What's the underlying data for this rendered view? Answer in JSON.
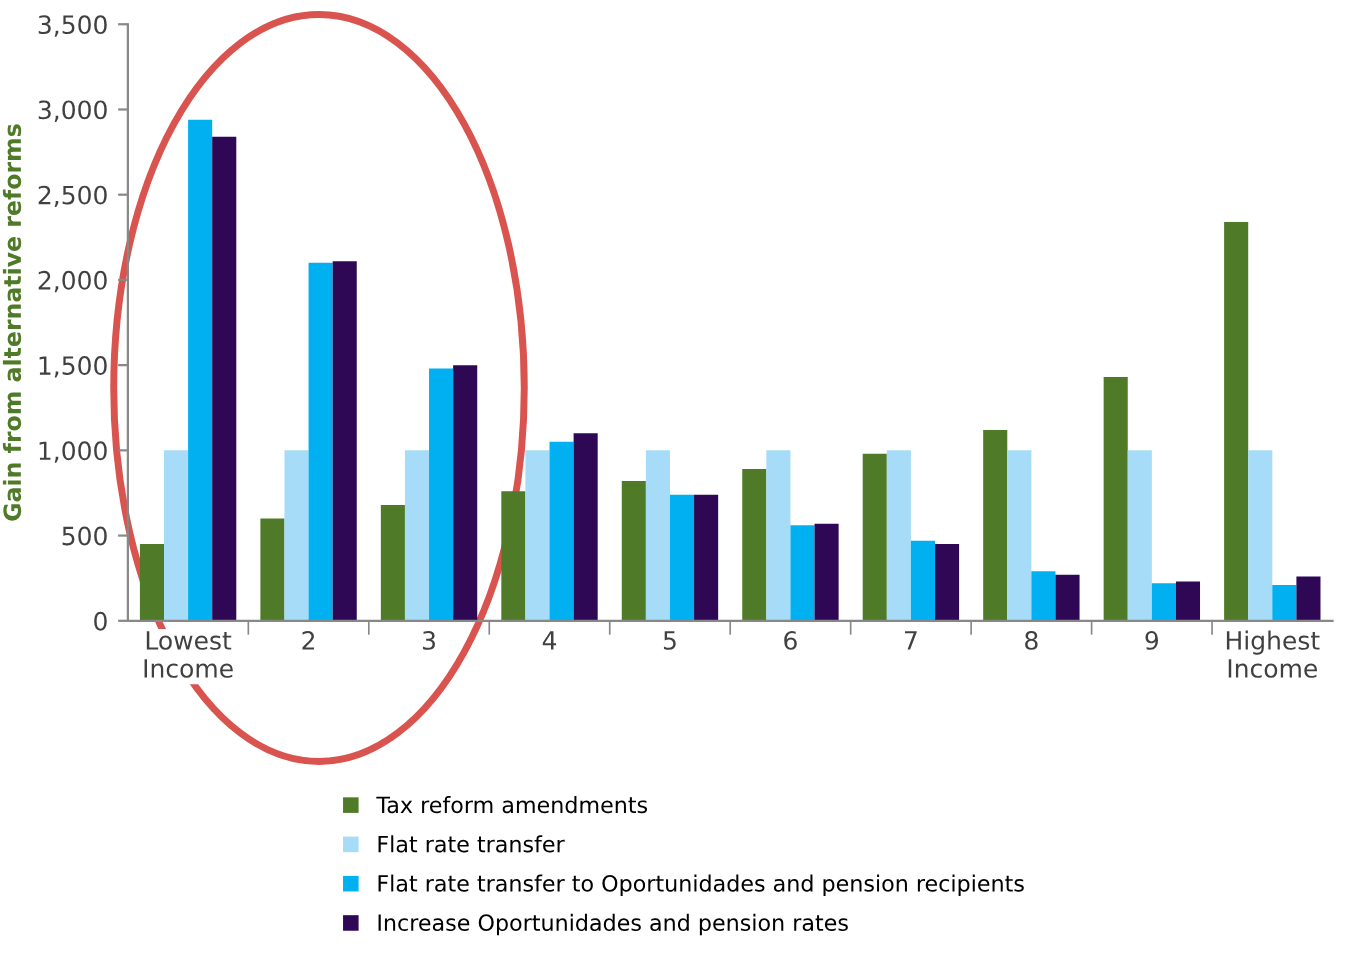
{
  "chart_data": {
    "type": "bar",
    "ylabel": "Gain from alternative reforms",
    "categories": [
      "Lowest\nIncome",
      "2",
      "3",
      "4",
      "5",
      "6",
      "7",
      "8",
      "9",
      "Highest\nIncome"
    ],
    "series": [
      {
        "name": "Tax reform amendments",
        "color": "#4f7a28",
        "values": [
          450,
          600,
          680,
          760,
          820,
          890,
          980,
          1120,
          1430,
          2340
        ]
      },
      {
        "name": "Flat rate transfer",
        "color": "#a6dcf7",
        "values": [
          1000,
          1000,
          1000,
          1000,
          1000,
          1000,
          1000,
          1000,
          1000,
          1000
        ]
      },
      {
        "name": "Flat rate transfer to Oportunidades and pension recipients",
        "color": "#00b0f0",
        "values": [
          2940,
          2100,
          1480,
          1050,
          740,
          560,
          470,
          290,
          220,
          210
        ]
      },
      {
        "name": "Increase Oportunidades and pension rates",
        "color": "#2e0854",
        "values": [
          2840,
          2110,
          1500,
          1100,
          740,
          570,
          450,
          270,
          230,
          260
        ]
      }
    ],
    "ylim": [
      0,
      3500
    ],
    "yticks": [
      0,
      500,
      {
        "value": 1000,
        "label": "1,000"
      },
      {
        "value": 1500,
        "label": "1,500"
      },
      {
        "value": 2000,
        "label": "2,000"
      },
      {
        "value": 2500,
        "label": "2,500"
      },
      {
        "value": 3000,
        "label": "3,000"
      },
      {
        "value": 3500,
        "label": "3,500"
      }
    ],
    "grid": false,
    "legend": "bottom"
  }
}
